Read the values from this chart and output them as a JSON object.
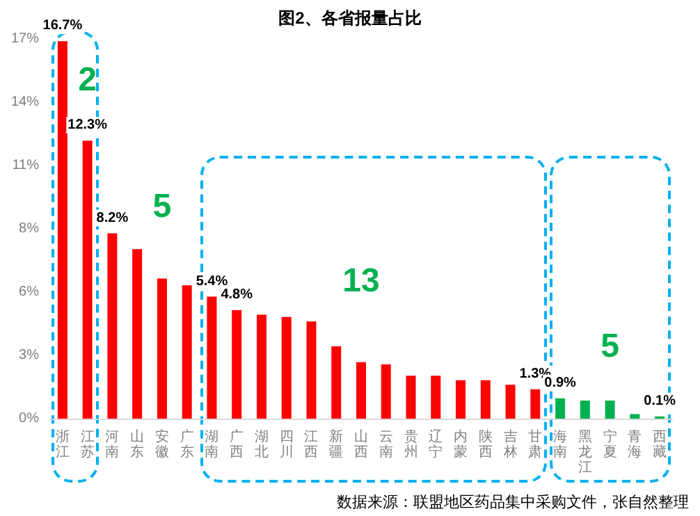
{
  "chart_data": {
    "type": "bar",
    "title": "图2、各省报量占比",
    "categories": [
      "浙江",
      "江苏",
      "河南",
      "山东",
      "安徽",
      "广东",
      "湖南",
      "广西",
      "湖北",
      "四川",
      "江西",
      "新疆",
      "山西",
      "云南",
      "贵州",
      "辽宁",
      "内蒙",
      "陕西",
      "吉林",
      "甘肃",
      "海南",
      "黑龙江",
      "宁夏",
      "青海",
      "西藏"
    ],
    "values": [
      16.7,
      12.3,
      8.2,
      7.5,
      6.2,
      5.9,
      5.4,
      4.8,
      4.6,
      4.5,
      4.3,
      3.2,
      2.5,
      2.4,
      1.9,
      1.9,
      1.7,
      1.7,
      1.5,
      1.3,
      0.9,
      0.8,
      0.8,
      0.2,
      0.1
    ],
    "colors": [
      "#ff0000",
      "#ff0000",
      "#ff0000",
      "#ff0000",
      "#ff0000",
      "#ff0000",
      "#ff0000",
      "#ff0000",
      "#ff0000",
      "#ff0000",
      "#ff0000",
      "#ff0000",
      "#ff0000",
      "#ff0000",
      "#ff0000",
      "#ff0000",
      "#ff0000",
      "#ff0000",
      "#ff0000",
      "#ff0000",
      "#00b050",
      "#00b050",
      "#00b050",
      "#00b050",
      "#00b050"
    ],
    "value_labels": [
      "16.7%",
      "12.3%",
      "8.2%",
      null,
      null,
      null,
      "5.4%",
      "4.8%",
      null,
      null,
      null,
      null,
      null,
      null,
      null,
      null,
      null,
      null,
      null,
      "1.3%",
      "0.9%",
      null,
      null,
      null,
      "0.1%"
    ],
    "ylim": [
      0,
      16.8
    ],
    "yticks": [
      {
        "value": 0,
        "label": "0%"
      },
      {
        "value": 2.8,
        "label": "3%"
      },
      {
        "value": 5.6,
        "label": "6%"
      },
      {
        "value": 8.4,
        "label": "8%"
      },
      {
        "value": 11.2,
        "label": "11%"
      },
      {
        "value": 14,
        "label": "14%"
      },
      {
        "value": 16.8,
        "label": "17%"
      }
    ],
    "annotations": [
      "2",
      "5",
      "13",
      "5",
      "数据来源：联盟地区药品集中采购文件，张自然整理"
    ]
  }
}
